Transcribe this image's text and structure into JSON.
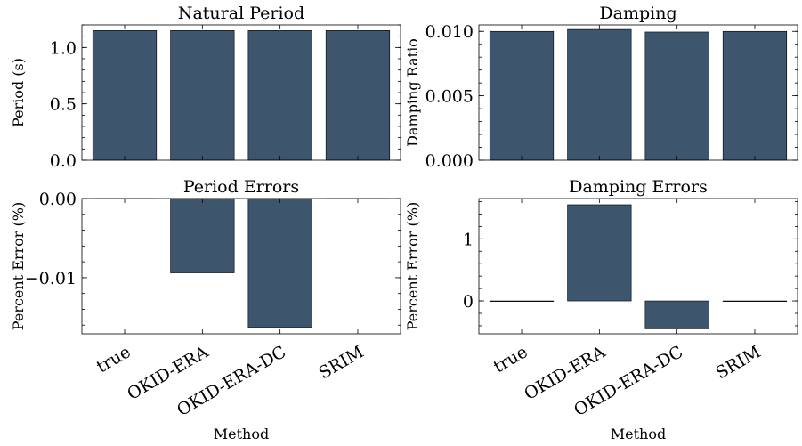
{
  "chart_data": [
    {
      "type": "bar",
      "title": "Natural Period",
      "ylabel": "Period (s)",
      "xlabel": "",
      "categories": [
        "true",
        "OKID-ERA",
        "OKID-ERA-DC",
        "SRIM"
      ],
      "values": [
        1.15,
        1.15,
        1.15,
        1.15
      ],
      "ylim": [
        0,
        1.2
      ],
      "yticks": [
        0.0,
        0.5,
        1.0
      ],
      "yticklabels": [
        "0.0",
        "0.5",
        "1.0"
      ],
      "show_xticklabels": false
    },
    {
      "type": "bar",
      "title": "Damping",
      "ylabel": "Damping Ratio",
      "xlabel": "",
      "categories": [
        "true",
        "OKID-ERA",
        "OKID-ERA-DC",
        "SRIM"
      ],
      "values": [
        0.01,
        0.01015,
        0.00995,
        0.01
      ],
      "ylim": [
        0,
        0.0105
      ],
      "yticks": [
        0.0,
        0.005,
        0.01
      ],
      "yticklabels": [
        "0.000",
        "0.005",
        "0.010"
      ],
      "show_xticklabels": false
    },
    {
      "type": "bar",
      "title": "Period Errors",
      "ylabel": "Percent Error (%)",
      "xlabel": "Method",
      "categories": [
        "true",
        "OKID-ERA",
        "OKID-ERA-DC",
        "SRIM"
      ],
      "values": [
        0,
        -0.0094,
        -0.0163,
        0
      ],
      "ylim": [
        -0.0171,
        0
      ],
      "yticks": [
        -0.01,
        0.0
      ],
      "yticklabels": [
        "−0.01",
        "0.00"
      ],
      "show_xticklabels": true
    },
    {
      "type": "bar",
      "title": "Damping Errors",
      "ylabel": "Percent Error (%)",
      "xlabel": "Method",
      "categories": [
        "true",
        "OKID-ERA",
        "OKID-ERA-DC",
        "SRIM"
      ],
      "values": [
        0,
        1.55,
        -0.45,
        0
      ],
      "ylim": [
        -0.53,
        1.65
      ],
      "yticks": [
        0,
        1
      ],
      "yticklabels": [
        "0",
        "1"
      ],
      "show_xticklabels": true
    }
  ],
  "colors": {
    "bar": "#3d566e"
  }
}
